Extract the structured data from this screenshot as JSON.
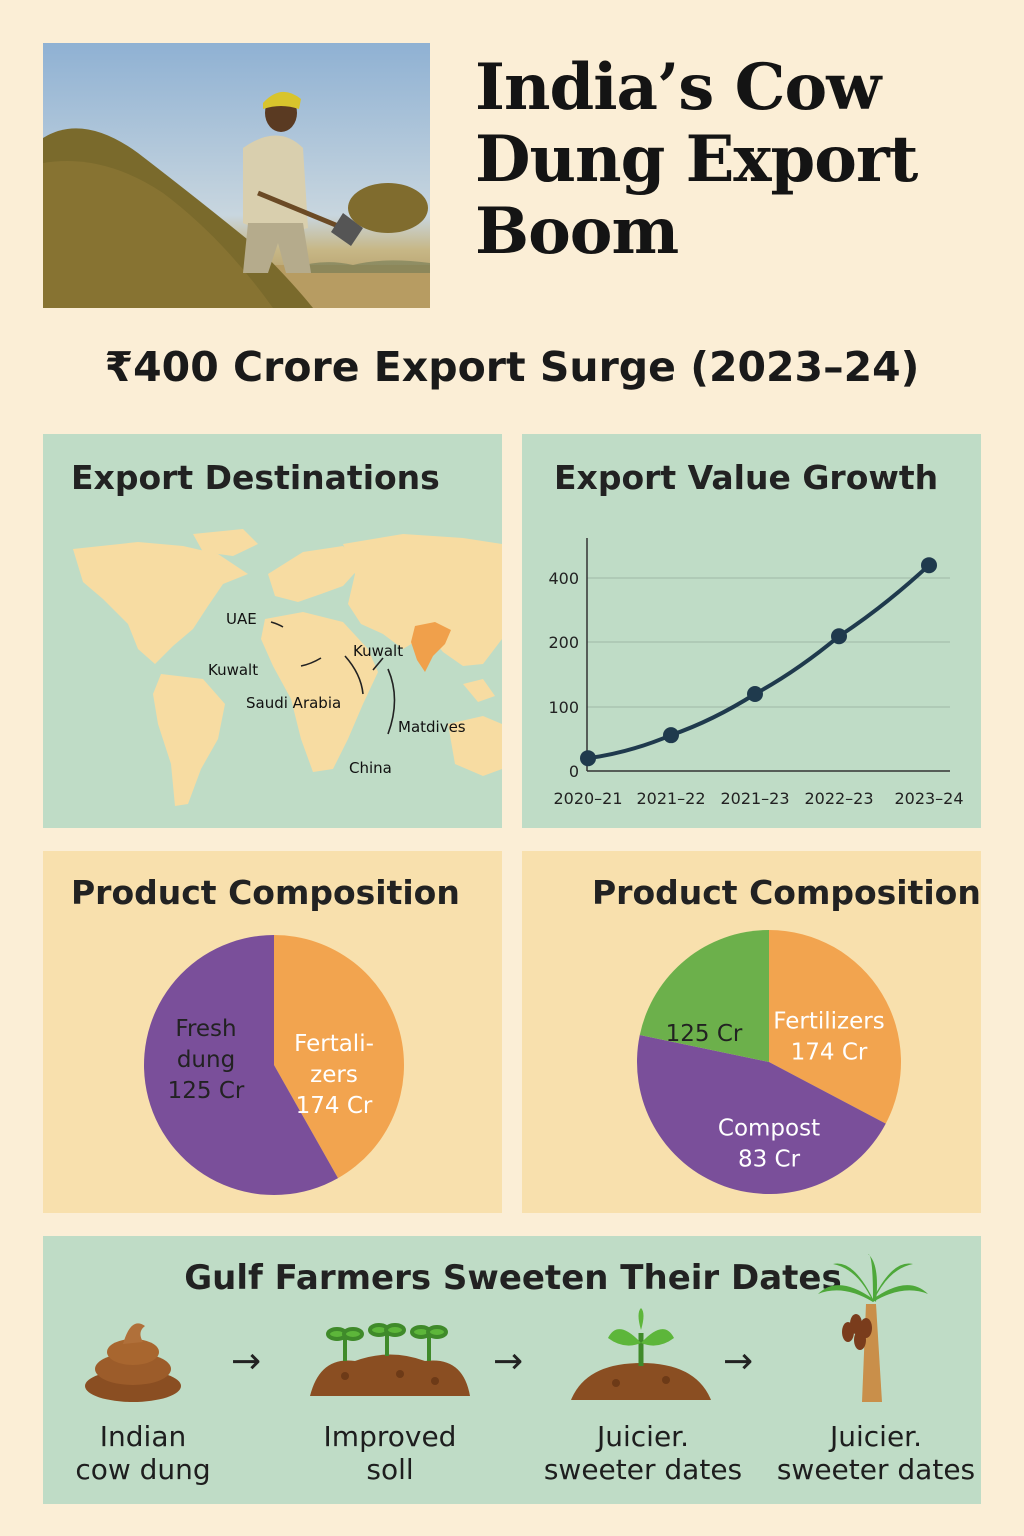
{
  "header": {
    "title": "India’s Cow Dung Export Boom",
    "subtitle": "₹400 Crore Export Surge (2023–24)"
  },
  "map_panel": {
    "title": "Export Destinations",
    "labels": [
      "UAE",
      "Kuwalt",
      "Kuwalt",
      "Saudi Arabia",
      "Matdives",
      "China"
    ]
  },
  "growth_panel": {
    "title": "Export Value Growth"
  },
  "pie_panel_left": {
    "title": "Product Composition"
  },
  "pie_panel_right": {
    "title": "Product Composition"
  },
  "flow": {
    "title": "Gulf Farmers Sweeten Their Dates",
    "arrow": "→",
    "steps": [
      {
        "line1": "Indian",
        "line2": "cow dung",
        "icon": "dung-icon"
      },
      {
        "line1": "Improved",
        "line2": "soll",
        "icon": "sprouting-soil-icon"
      },
      {
        "line1": "Juicier.",
        "line2": "sweeter dates",
        "icon": "seedling-icon"
      },
      {
        "line1": "Juicier.",
        "line2": "sweeter dates",
        "icon": "date-palm-icon"
      }
    ]
  },
  "colors": {
    "orange": "#f2a44f",
    "purple": "#7a4f9a",
    "green": "#6cb04b",
    "india": "#f0a04b",
    "line": "#1f3a4d"
  },
  "chart_data": [
    {
      "type": "line",
      "title": "Export Value Growth",
      "x": [
        "2020–21",
        "2021–22",
        "2021–23",
        "2022–23",
        "2023–24"
      ],
      "series": [
        {
          "values": [
            20,
            56,
            120,
            218,
            440
          ]
        }
      ],
      "yticks": [
        0,
        100,
        200,
        400
      ],
      "grid": true
    },
    {
      "type": "pie",
      "title": "Product Composition",
      "slices": [
        {
          "line1": "Fresh",
          "line2": "dung",
          "line3": "125 Cr",
          "value": 125,
          "color": "#f2a44f"
        },
        {
          "line1": "Fertali-",
          "line2": "zers",
          "line3": "174 Cr",
          "value": 174,
          "color": "#7a4f9a"
        }
      ]
    },
    {
      "type": "pie",
      "title": "Product Composition",
      "slices": [
        {
          "line1": "",
          "line2": "125 Cr",
          "value": 125,
          "color": "#f2a44f"
        },
        {
          "line1": "Fertilizers",
          "line2": "174 Cr",
          "value": 174,
          "color": "#7a4f9a"
        },
        {
          "line1": "Compost",
          "line2": "83 Cr",
          "value": 83,
          "color": "#6cb04b"
        }
      ]
    }
  ]
}
